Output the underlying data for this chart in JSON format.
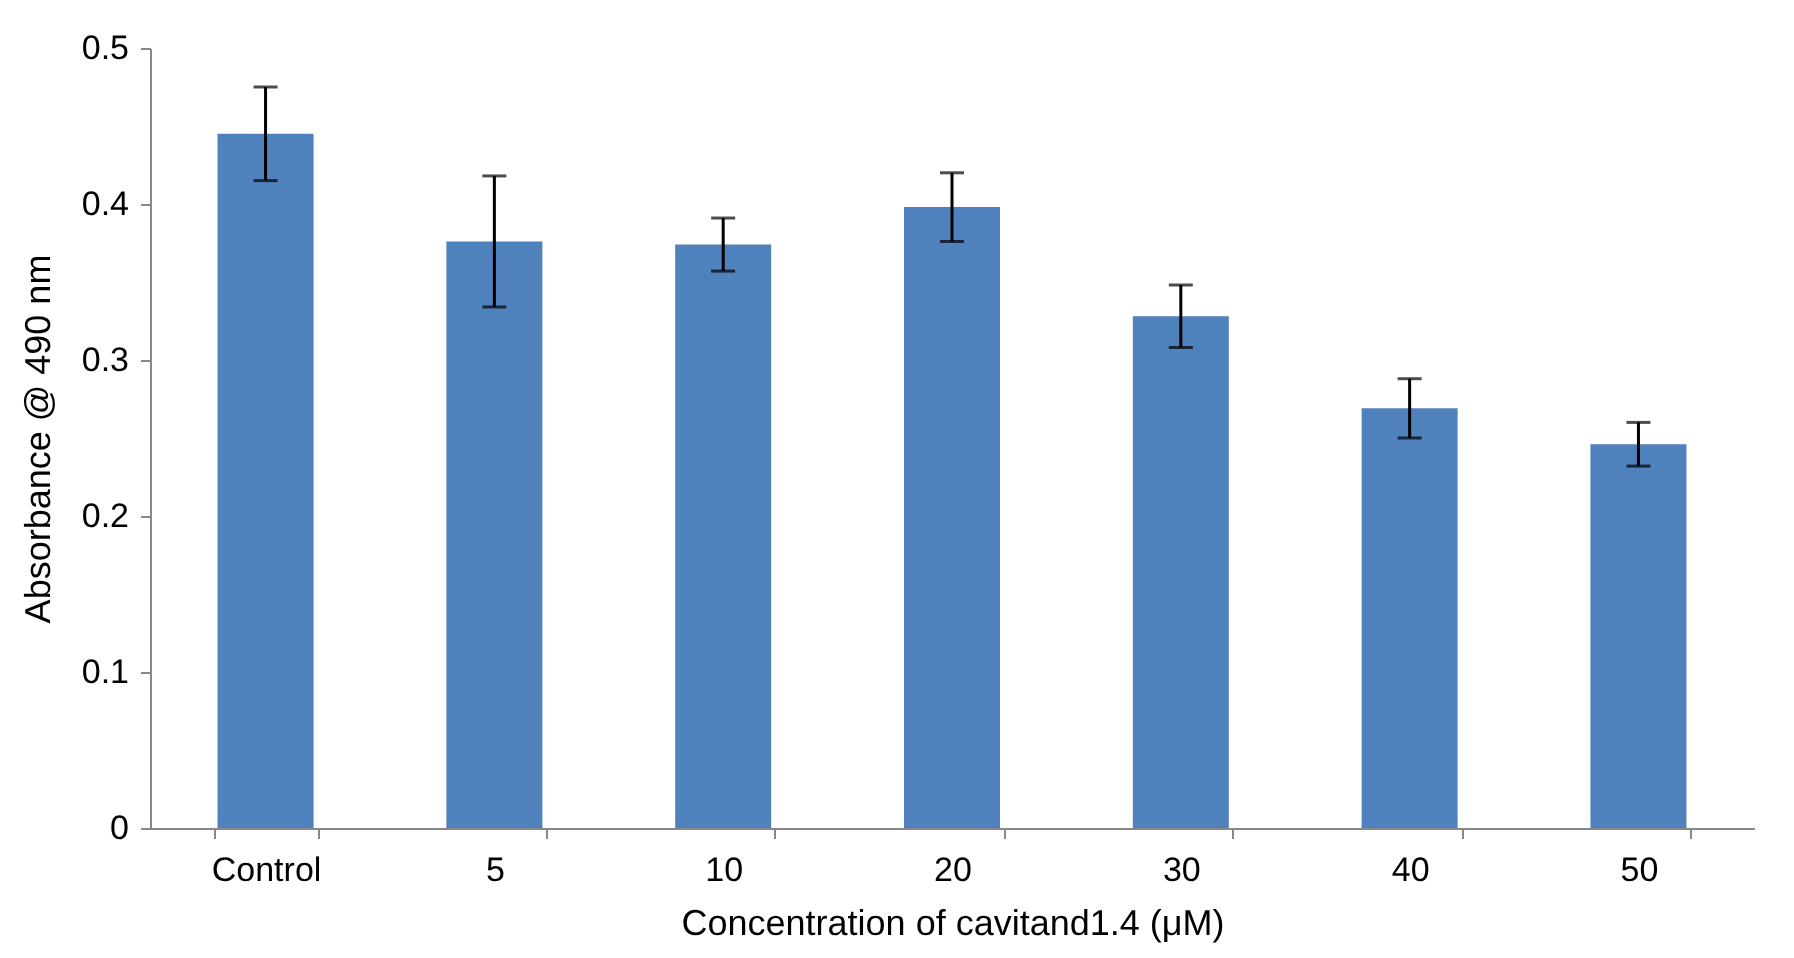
{
  "chart_data": {
    "type": "bar",
    "xlabel": "Concentration of cavitand1.4 (μM)",
    "ylabel": "Absorbance @ 490 nm",
    "categories": [
      "Control",
      "5",
      "10",
      "20",
      "30",
      "40",
      "50"
    ],
    "values": [
      0.445,
      0.376,
      0.374,
      0.398,
      0.328,
      0.269,
      0.246
    ],
    "errors": [
      0.03,
      0.042,
      0.017,
      0.022,
      0.02,
      0.019,
      0.014
    ],
    "color": "#4f81bd",
    "ylim": [
      0,
      0.5
    ],
    "yticks": [
      0,
      0.1,
      0.2,
      0.3,
      0.4,
      0.5
    ],
    "grid": false
  }
}
